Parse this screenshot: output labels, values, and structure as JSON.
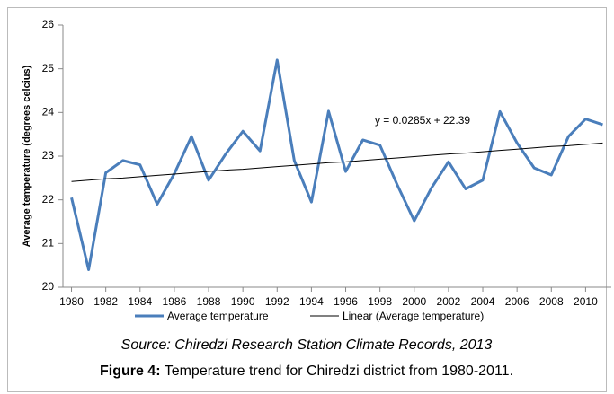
{
  "chart_data": {
    "type": "line",
    "ylabel": "Average temperature (degrees celcius)",
    "x": [
      1980,
      1981,
      1982,
      1983,
      1984,
      1985,
      1986,
      1987,
      1988,
      1989,
      1990,
      1991,
      1992,
      1993,
      1994,
      1995,
      1996,
      1997,
      1998,
      1999,
      2000,
      2001,
      2002,
      2003,
      2004,
      2005,
      2006,
      2007,
      2008,
      2009,
      2010,
      2011
    ],
    "series": [
      {
        "name": "Average temperature",
        "color": "#4a7ebb",
        "values": [
          22.05,
          20.4,
          22.62,
          22.9,
          22.8,
          21.9,
          22.6,
          23.45,
          22.45,
          23.05,
          23.57,
          23.12,
          25.2,
          22.9,
          21.95,
          24.03,
          22.65,
          23.37,
          23.25,
          22.35,
          21.52,
          22.27,
          22.87,
          22.25,
          22.45,
          24.02,
          23.3,
          22.73,
          22.57,
          23.45,
          23.85,
          23.72
        ]
      },
      {
        "name": "Linear (Average temperature)",
        "color": "#000000",
        "values": [
          22.42,
          22.45,
          22.48,
          22.5,
          22.53,
          22.56,
          22.59,
          22.62,
          22.65,
          22.68,
          22.7,
          22.73,
          22.76,
          22.79,
          22.82,
          22.85,
          22.87,
          22.9,
          22.93,
          22.96,
          22.99,
          23.02,
          23.05,
          23.07,
          23.1,
          23.13,
          23.16,
          23.19,
          23.22,
          23.24,
          23.27,
          23.3
        ]
      }
    ],
    "annotation": "y = 0.0285x + 22.39",
    "xlim": [
      1979.5,
      2011.5
    ],
    "xticks": [
      1980,
      1982,
      1984,
      1986,
      1988,
      1990,
      1992,
      1994,
      1996,
      1998,
      2000,
      2002,
      2004,
      2006,
      2008,
      2010
    ],
    "ylim": [
      20,
      26
    ],
    "yticks": [
      20,
      21,
      22,
      23,
      24,
      25,
      26
    ],
    "source": "Source: Chiredzi Research Station Climate Records, 2013",
    "caption_label": "Figure 4:",
    "caption": "Temperature trend for Chiredzi district from 1980-2011."
  }
}
